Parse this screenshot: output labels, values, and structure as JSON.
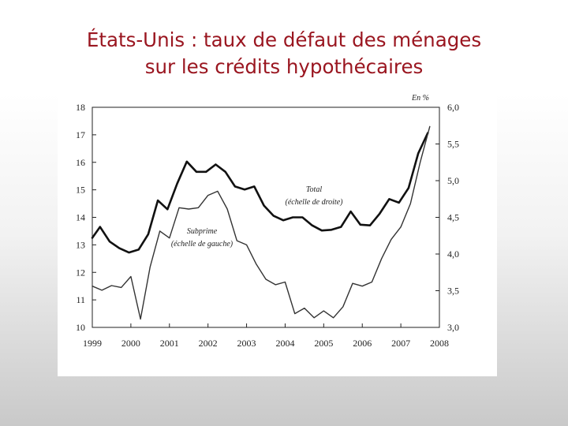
{
  "slide": {
    "title_line1": "États-Unis : taux de défaut des ménages",
    "title_line2": "sur les crédits hypothécaires",
    "title_color": "#9a1620"
  },
  "chart_data": {
    "type": "line",
    "title": "États-Unis : taux de défaut des ménages sur les crédits hypothécaires",
    "unit_label": "En %",
    "x_ticks": [
      "1999",
      "2000",
      "2001",
      "2002",
      "2003",
      "2004",
      "2005",
      "2006",
      "2007",
      "2008"
    ],
    "xlim": [
      1999,
      2008
    ],
    "left_axis": {
      "ylim": [
        10,
        18
      ],
      "ticks": [
        "10",
        "11",
        "12",
        "13",
        "14",
        "15",
        "16",
        "17",
        "18"
      ]
    },
    "right_axis": {
      "ylim": [
        3.0,
        6.0
      ],
      "ticks": [
        "3,0",
        "3,5",
        "4,0",
        "4,5",
        "5,0",
        "5,5",
        "6,0"
      ]
    },
    "grid": false,
    "series": [
      {
        "name": "Total (échelle de droite)",
        "axis": "right",
        "label_line1": "Total",
        "label_line2": "(échelle de droite)",
        "color": "#111111",
        "points": [
          [
            1999.0,
            4.22
          ],
          [
            1999.2,
            4.37
          ],
          [
            1999.45,
            4.17
          ],
          [
            1999.7,
            4.08
          ],
          [
            1999.95,
            4.02
          ],
          [
            2000.2,
            4.06
          ],
          [
            2000.45,
            4.27
          ],
          [
            2000.7,
            4.73
          ],
          [
            2000.95,
            4.61
          ],
          [
            2001.2,
            4.96
          ],
          [
            2001.45,
            5.26
          ],
          [
            2001.7,
            5.12
          ],
          [
            2001.95,
            5.12
          ],
          [
            2002.2,
            5.22
          ],
          [
            2002.45,
            5.12
          ],
          [
            2002.7,
            4.92
          ],
          [
            2002.95,
            4.88
          ],
          [
            2003.2,
            4.92
          ],
          [
            2003.45,
            4.66
          ],
          [
            2003.7,
            4.52
          ],
          [
            2003.95,
            4.46
          ],
          [
            2004.2,
            4.5
          ],
          [
            2004.45,
            4.5
          ],
          [
            2004.7,
            4.39
          ],
          [
            2004.95,
            4.32
          ],
          [
            2005.2,
            4.33
          ],
          [
            2005.45,
            4.37
          ],
          [
            2005.7,
            4.58
          ],
          [
            2005.95,
            4.4
          ],
          [
            2006.2,
            4.39
          ],
          [
            2006.45,
            4.55
          ],
          [
            2006.7,
            4.75
          ],
          [
            2006.95,
            4.7
          ],
          [
            2007.2,
            4.9
          ],
          [
            2007.45,
            5.37
          ],
          [
            2007.7,
            5.65
          ]
        ]
      },
      {
        "name": "Subprime (échelle de gauche)",
        "axis": "left",
        "label_line1": "Subprime",
        "label_line2": "(échelle de gauche)",
        "color": "#333333",
        "points": [
          [
            1999.0,
            11.5
          ],
          [
            1999.25,
            11.35
          ],
          [
            1999.5,
            11.52
          ],
          [
            1999.75,
            11.45
          ],
          [
            2000.0,
            11.85
          ],
          [
            2000.25,
            10.3
          ],
          [
            2000.5,
            12.2
          ],
          [
            2000.75,
            13.5
          ],
          [
            2001.0,
            13.25
          ],
          [
            2001.25,
            14.35
          ],
          [
            2001.5,
            14.3
          ],
          [
            2001.75,
            14.35
          ],
          [
            2002.0,
            14.8
          ],
          [
            2002.25,
            14.95
          ],
          [
            2002.5,
            14.3
          ],
          [
            2002.75,
            13.15
          ],
          [
            2003.0,
            13.0
          ],
          [
            2003.25,
            12.3
          ],
          [
            2003.5,
            11.75
          ],
          [
            2003.75,
            11.55
          ],
          [
            2004.0,
            11.65
          ],
          [
            2004.25,
            10.5
          ],
          [
            2004.5,
            10.7
          ],
          [
            2004.75,
            10.35
          ],
          [
            2005.0,
            10.6
          ],
          [
            2005.25,
            10.35
          ],
          [
            2005.5,
            10.75
          ],
          [
            2005.75,
            11.6
          ],
          [
            2006.0,
            11.5
          ],
          [
            2006.25,
            11.65
          ],
          [
            2006.5,
            12.5
          ],
          [
            2006.75,
            13.2
          ],
          [
            2007.0,
            13.65
          ],
          [
            2007.25,
            14.5
          ],
          [
            2007.5,
            16.0
          ],
          [
            2007.75,
            17.3
          ]
        ]
      }
    ]
  }
}
